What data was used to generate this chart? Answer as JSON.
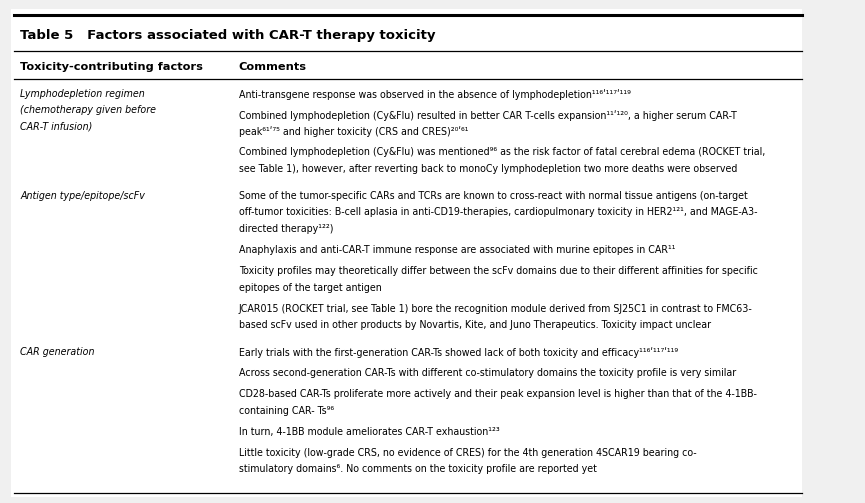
{
  "title": "Table 5   Factors associated with CAR-T therapy toxicity",
  "col1_header": "Toxicity-contributing factors",
  "col2_header": "Comments",
  "bg_color": "#f0f0f0",
  "table_bg": "#ffffff",
  "rows": [
    {
      "factor": "Lymphodepletion regimen\n(chemotherapy given before\nCAR-T infusion)",
      "comments": [
        "Anti-transgene response was observed in the absence of lymphodepletion¹¹⁶ʹ¹¹⁷ʹ¹¹⁹",
        "Combined lymphodepletion (Cy&Flu) resulted in better CAR T-cells expansion¹¹ʹ¹²⁰, a higher serum CAR-T\npeak⁶¹ʹ⁷⁵ and higher toxicity (CRS and CRES)²⁰ʹ⁶¹",
        "Combined lymphodepletion (Cy&Flu) was mentioned⁹⁶ as the risk factor of fatal cerebral edema (ROCKET trial,\nsee Table 1), however, after reverting back to monoCy lymphodepletion two more deaths were observed"
      ]
    },
    {
      "factor": "Antigen type/epitope/scFv",
      "comments": [
        "Some of the tumor-specific CARs and TCRs are known to cross-react with normal tissue antigens (on-target\noff-tumor toxicities: B-cell aplasia in anti-CD19-therapies, cardiopulmonary toxicity in HER2¹²¹, and MAGE-A3-\ndirected therapy¹²²)",
        "Anaphylaxis and anti-CAR-T immune response are associated with murine epitopes in CAR¹¹",
        "Toxicity profiles may theoretically differ between the scFv domains due to their different affinities for specific\nepitopes of the target antigen",
        "JCAR015 (ROCKET trial, see Table 1) bore the recognition module derived from SJ25C1 in contrast to FMC63-\nbased scFv used in other products by Novartis, Kite, and Juno Therapeutics. Toxicity impact unclear"
      ]
    },
    {
      "factor": "CAR generation",
      "comments": [
        "Early trials with the first-generation CAR-Ts showed lack of both toxicity and efficacy¹¹⁶ʹ¹¹⁷ʹ¹¹⁹",
        "Across second-generation CAR-Ts with different co-stimulatory domains the toxicity profile is very similar",
        "CD28-based CAR-Ts proliferate more actively and their peak expansion level is higher than that of the 4-1BB-\ncontaining CAR- Ts⁹⁶",
        "In turn, 4-1BB module ameliorates CAR-T exhaustion¹²³",
        "Little toxicity (low-grade CRS, no evidence of CRES) for the 4th generation 4SCAR19 bearing co-\nstimulatory domains⁶. No comments on the toxicity profile are reported yet"
      ]
    }
  ]
}
